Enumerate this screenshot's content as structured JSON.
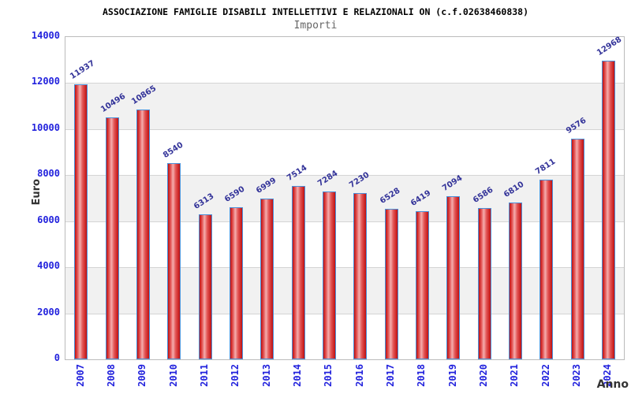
{
  "chart_data": {
    "type": "bar",
    "title": "ASSOCIAZIONE FAMIGLIE DISABILI INTELLETTIVI E RELAZIONALI ON (c.f.02638460838)",
    "subtitle": "Importi",
    "xlabel": "Anno",
    "ylabel": "Euro",
    "categories": [
      "2007",
      "2008",
      "2009",
      "2010",
      "2011",
      "2012",
      "2013",
      "2014",
      "2015",
      "2016",
      "2017",
      "2018",
      "2019",
      "2020",
      "2021",
      "2022",
      "2023",
      "2024"
    ],
    "values": [
      11937,
      10496,
      10865,
      8540,
      6313,
      6590,
      6999,
      7514,
      7284,
      7230,
      6528,
      6419,
      7094,
      6586,
      6810,
      7811,
      9576,
      12968
    ],
    "ylim": [
      0,
      14000
    ],
    "ytick_step": 2000,
    "ytick_labels": [
      "0",
      "2000",
      "4000",
      "6000",
      "8000",
      "10000",
      "12000",
      "14000"
    ],
    "legend": "none",
    "grid": "horizontal, alternating shaded bands every 2000",
    "style": {
      "background": "#ffffff",
      "band_color": "#f1f1f1",
      "grid_color": "#d4d4d4",
      "plot_border_color": "#bbbbbb",
      "bar_border": "#4a90d9",
      "bar_edge_red": "#c01010",
      "bar_mid_red": "#e35555",
      "bar_highlight_red": "#f4adad",
      "axis_tick_color": "#2222dd",
      "value_label_color": "#333399",
      "title_color": "#000000",
      "subtitle_color": "#666666",
      "axis_title_color": "#333333"
    }
  }
}
